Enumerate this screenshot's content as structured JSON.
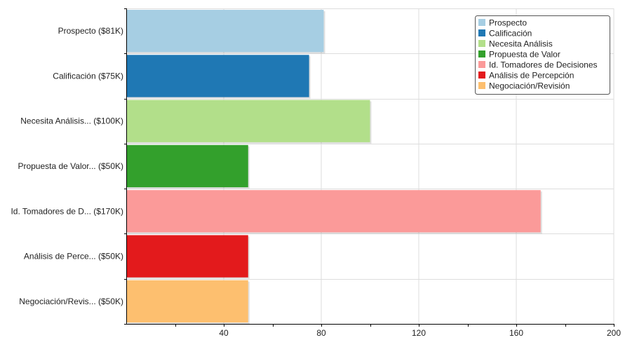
{
  "chart_data": {
    "type": "bar",
    "orientation": "horizontal",
    "categories": [
      "Prospecto ($81K)",
      "Calificación ($75K)",
      "Necesita Análisis... ($100K)",
      "Propuesta de Valor... ($50K)",
      "Id. Tomadores de D... ($170K)",
      "Análisis de Perce... ($50K)",
      "Negociación/Revis... ($50K)"
    ],
    "values": [
      81,
      75,
      100,
      50,
      170,
      50,
      50
    ],
    "colors": [
      "#a6cee3",
      "#1f78b4",
      "#b2df8a",
      "#33a02c",
      "#fb9a99",
      "#e31a1c",
      "#fdbf6f"
    ],
    "legend": [
      "Prospecto",
      "Calificación",
      "Necesita Análisis",
      "Propuesta de Valor",
      "Id. Tomadores de Decisiones",
      "Análisis de Percepción",
      "Negociación/Revisión"
    ],
    "xlim": [
      0,
      200
    ],
    "xticks": [
      40,
      80,
      120,
      160,
      200
    ],
    "title": "",
    "xlabel": "",
    "ylabel": "",
    "grid": true,
    "legend_position": "top-right"
  }
}
